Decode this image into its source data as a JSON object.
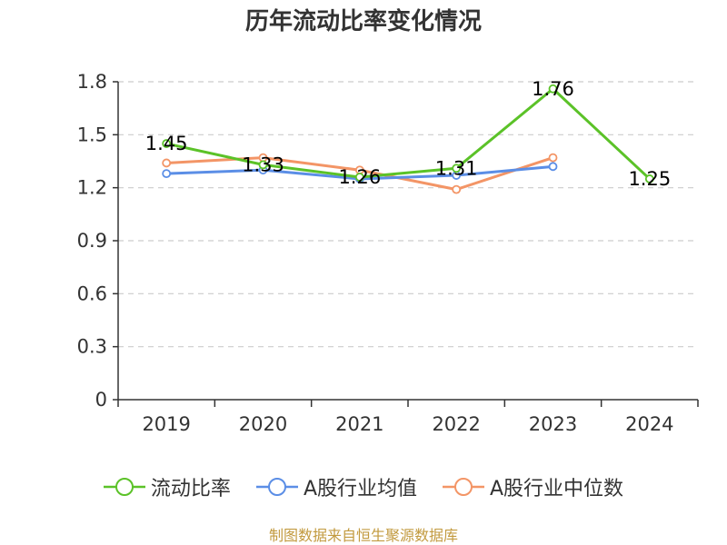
{
  "chart_data": {
    "type": "line",
    "title": "历年流动比率变化情况",
    "categories": [
      "2019",
      "2020",
      "2021",
      "2022",
      "2023",
      "2024"
    ],
    "ylim": [
      0,
      1.8
    ],
    "yticks": [
      "0",
      "0.3",
      "0.6",
      "0.9",
      "1.2",
      "1.5",
      "1.8"
    ],
    "ytick_values": [
      0,
      0.3,
      0.6,
      0.9,
      1.2,
      1.5,
      1.8
    ],
    "grid": true,
    "legend_position": "bottom",
    "series": [
      {
        "name": "流动比率",
        "color": "#5bc228",
        "values": [
          1.45,
          1.33,
          1.26,
          1.31,
          1.76,
          1.25
        ],
        "labels": [
          "1.45",
          "1.33",
          "1.26",
          "1.31",
          "1.76",
          "1.25"
        ],
        "show_labels": true
      },
      {
        "name": "A股行业均值",
        "color": "#5b8ee6",
        "values": [
          1.28,
          1.3,
          1.25,
          1.27,
          1.32,
          null
        ],
        "show_labels": false
      },
      {
        "name": "A股行业中位数",
        "color": "#f39566",
        "values": [
          1.34,
          1.37,
          1.3,
          1.19,
          1.37,
          null
        ],
        "show_labels": false
      }
    ]
  },
  "source": "制图数据来自恒生聚源数据库"
}
